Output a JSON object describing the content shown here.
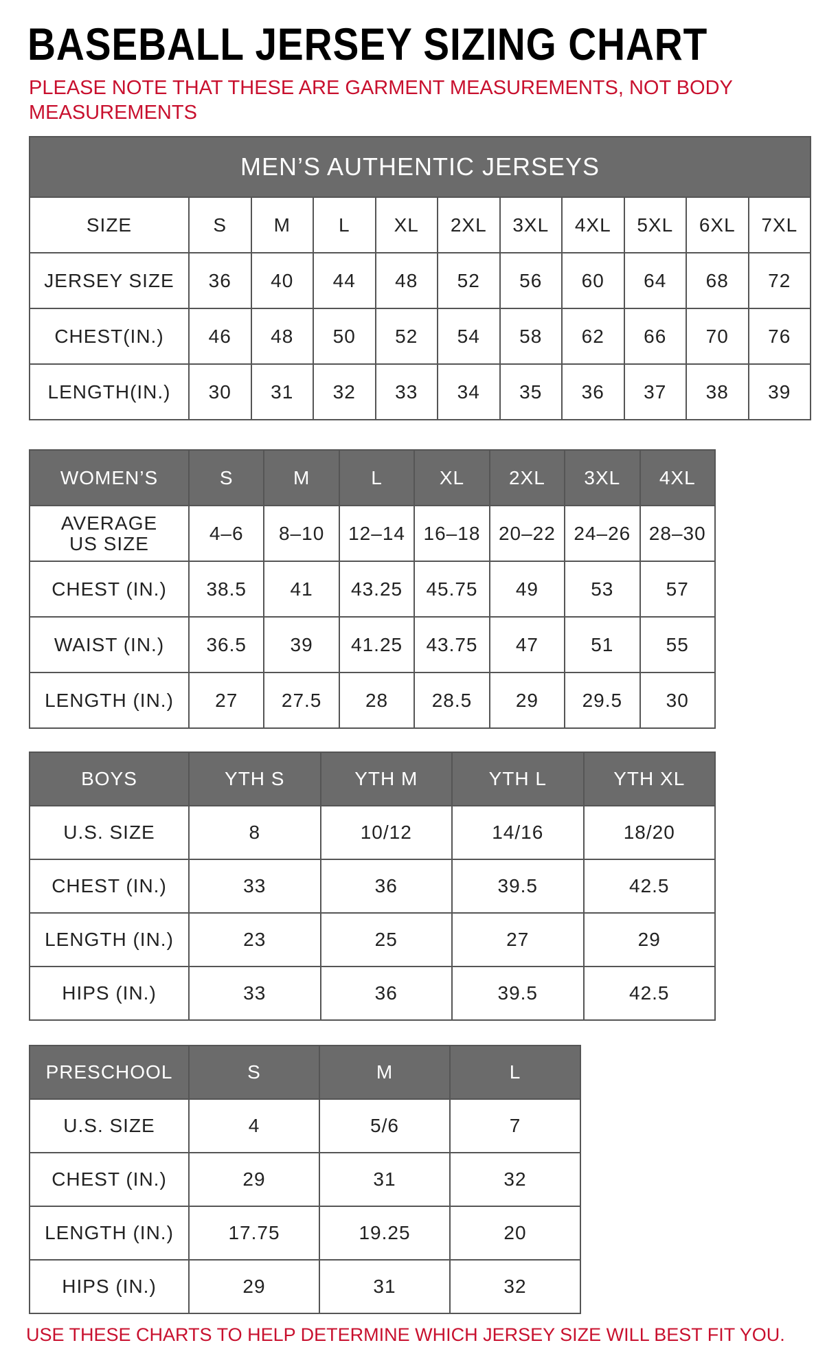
{
  "title": "BASEBALL JERSEY SIZING CHART",
  "note": "PLEASE NOTE THAT THESE ARE GARMENT MEASUREMENTS, NOT BODY MEASUREMENTS",
  "tables": [
    {
      "caption": "MEN’S AUTHENTIC JERSEYS",
      "header": [
        "SIZE",
        "S",
        "M",
        "L",
        "XL",
        "2XL",
        "3XL",
        "4XL",
        "5XL",
        "6XL",
        "7XL"
      ],
      "rows": [
        [
          "JERSEY SIZE",
          "36",
          "40",
          "44",
          "48",
          "52",
          "56",
          "60",
          "64",
          "68",
          "72"
        ],
        [
          "CHEST(IN.)",
          "46",
          "48",
          "50",
          "52",
          "54",
          "58",
          "62",
          "66",
          "70",
          "76"
        ],
        [
          "LENGTH(IN.)",
          "30",
          "31",
          "32",
          "33",
          "34",
          "35",
          "36",
          "37",
          "38",
          "39"
        ]
      ]
    },
    {
      "header": [
        "WOMEN’S",
        "S",
        "M",
        "L",
        "XL",
        "2XL",
        "3XL",
        "4XL"
      ],
      "rows": [
        [
          "AVERAGE\nUS SIZE",
          "4–6",
          "8–10",
          "12–14",
          "16–18",
          "20–22",
          "24–26",
          "28–30"
        ],
        [
          "CHEST (IN.)",
          "38.5",
          "41",
          "43.25",
          "45.75",
          "49",
          "53",
          "57"
        ],
        [
          "WAIST (IN.)",
          "36.5",
          "39",
          "41.25",
          "43.75",
          "47",
          "51",
          "55"
        ],
        [
          "LENGTH (IN.)",
          "27",
          "27.5",
          "28",
          "28.5",
          "29",
          "29.5",
          "30"
        ]
      ]
    },
    {
      "header": [
        "BOYS",
        "YTH S",
        "YTH M",
        "YTH L",
        "YTH XL"
      ],
      "rows": [
        [
          "U.S. SIZE",
          "8",
          "10/12",
          "14/16",
          "18/20"
        ],
        [
          "CHEST (IN.)",
          "33",
          "36",
          "39.5",
          "42.5"
        ],
        [
          "LENGTH (IN.)",
          "23",
          "25",
          "27",
          "29"
        ],
        [
          "HIPS (IN.)",
          "33",
          "36",
          "39.5",
          "42.5"
        ]
      ]
    },
    {
      "header": [
        "PRESCHOOL",
        "S",
        "M",
        "L"
      ],
      "rows": [
        [
          "U.S. SIZE",
          "4",
          "5/6",
          "7"
        ],
        [
          "CHEST (IN.)",
          "29",
          "31",
          "32"
        ],
        [
          "LENGTH (IN.)",
          "17.75",
          "19.25",
          "20"
        ],
        [
          "HIPS (IN.)",
          "29",
          "31",
          "32"
        ]
      ]
    }
  ],
  "footer": "USE THESE CHARTS TO HELP DETERMINE WHICH JERSEY SIZE WILL BEST FIT YOU."
}
